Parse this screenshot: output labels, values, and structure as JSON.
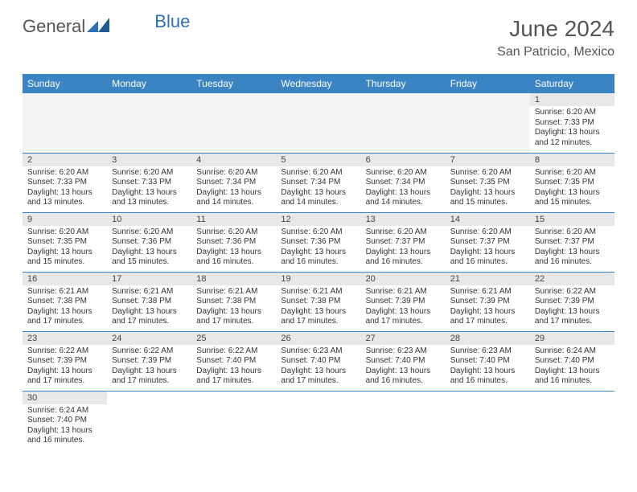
{
  "brand": {
    "word1": "General",
    "word2": "Blue"
  },
  "title": "June 2024",
  "location": "San Patricio, Mexico",
  "colors": {
    "header_bg": "#3b84c4",
    "header_text": "#ffffff",
    "daynum_bg": "#e8e8e8",
    "cell_border": "#3b84c4",
    "text": "#333333",
    "title_text": "#555555",
    "logo_blue": "#2c6fb5"
  },
  "day_headers": [
    "Sunday",
    "Monday",
    "Tuesday",
    "Wednesday",
    "Thursday",
    "Friday",
    "Saturday"
  ],
  "weeks": [
    [
      {
        "n": "",
        "lines": []
      },
      {
        "n": "",
        "lines": []
      },
      {
        "n": "",
        "lines": []
      },
      {
        "n": "",
        "lines": []
      },
      {
        "n": "",
        "lines": []
      },
      {
        "n": "",
        "lines": []
      },
      {
        "n": "1",
        "lines": [
          "Sunrise: 6:20 AM",
          "Sunset: 7:33 PM",
          "Daylight: 13 hours",
          "and 12 minutes."
        ]
      }
    ],
    [
      {
        "n": "2",
        "lines": [
          "Sunrise: 6:20 AM",
          "Sunset: 7:33 PM",
          "Daylight: 13 hours",
          "and 13 minutes."
        ]
      },
      {
        "n": "3",
        "lines": [
          "Sunrise: 6:20 AM",
          "Sunset: 7:33 PM",
          "Daylight: 13 hours",
          "and 13 minutes."
        ]
      },
      {
        "n": "4",
        "lines": [
          "Sunrise: 6:20 AM",
          "Sunset: 7:34 PM",
          "Daylight: 13 hours",
          "and 14 minutes."
        ]
      },
      {
        "n": "5",
        "lines": [
          "Sunrise: 6:20 AM",
          "Sunset: 7:34 PM",
          "Daylight: 13 hours",
          "and 14 minutes."
        ]
      },
      {
        "n": "6",
        "lines": [
          "Sunrise: 6:20 AM",
          "Sunset: 7:34 PM",
          "Daylight: 13 hours",
          "and 14 minutes."
        ]
      },
      {
        "n": "7",
        "lines": [
          "Sunrise: 6:20 AM",
          "Sunset: 7:35 PM",
          "Daylight: 13 hours",
          "and 15 minutes."
        ]
      },
      {
        "n": "8",
        "lines": [
          "Sunrise: 6:20 AM",
          "Sunset: 7:35 PM",
          "Daylight: 13 hours",
          "and 15 minutes."
        ]
      }
    ],
    [
      {
        "n": "9",
        "lines": [
          "Sunrise: 6:20 AM",
          "Sunset: 7:35 PM",
          "Daylight: 13 hours",
          "and 15 minutes."
        ]
      },
      {
        "n": "10",
        "lines": [
          "Sunrise: 6:20 AM",
          "Sunset: 7:36 PM",
          "Daylight: 13 hours",
          "and 15 minutes."
        ]
      },
      {
        "n": "11",
        "lines": [
          "Sunrise: 6:20 AM",
          "Sunset: 7:36 PM",
          "Daylight: 13 hours",
          "and 16 minutes."
        ]
      },
      {
        "n": "12",
        "lines": [
          "Sunrise: 6:20 AM",
          "Sunset: 7:36 PM",
          "Daylight: 13 hours",
          "and 16 minutes."
        ]
      },
      {
        "n": "13",
        "lines": [
          "Sunrise: 6:20 AM",
          "Sunset: 7:37 PM",
          "Daylight: 13 hours",
          "and 16 minutes."
        ]
      },
      {
        "n": "14",
        "lines": [
          "Sunrise: 6:20 AM",
          "Sunset: 7:37 PM",
          "Daylight: 13 hours",
          "and 16 minutes."
        ]
      },
      {
        "n": "15",
        "lines": [
          "Sunrise: 6:20 AM",
          "Sunset: 7:37 PM",
          "Daylight: 13 hours",
          "and 16 minutes."
        ]
      }
    ],
    [
      {
        "n": "16",
        "lines": [
          "Sunrise: 6:21 AM",
          "Sunset: 7:38 PM",
          "Daylight: 13 hours",
          "and 17 minutes."
        ]
      },
      {
        "n": "17",
        "lines": [
          "Sunrise: 6:21 AM",
          "Sunset: 7:38 PM",
          "Daylight: 13 hours",
          "and 17 minutes."
        ]
      },
      {
        "n": "18",
        "lines": [
          "Sunrise: 6:21 AM",
          "Sunset: 7:38 PM",
          "Daylight: 13 hours",
          "and 17 minutes."
        ]
      },
      {
        "n": "19",
        "lines": [
          "Sunrise: 6:21 AM",
          "Sunset: 7:38 PM",
          "Daylight: 13 hours",
          "and 17 minutes."
        ]
      },
      {
        "n": "20",
        "lines": [
          "Sunrise: 6:21 AM",
          "Sunset: 7:39 PM",
          "Daylight: 13 hours",
          "and 17 minutes."
        ]
      },
      {
        "n": "21",
        "lines": [
          "Sunrise: 6:21 AM",
          "Sunset: 7:39 PM",
          "Daylight: 13 hours",
          "and 17 minutes."
        ]
      },
      {
        "n": "22",
        "lines": [
          "Sunrise: 6:22 AM",
          "Sunset: 7:39 PM",
          "Daylight: 13 hours",
          "and 17 minutes."
        ]
      }
    ],
    [
      {
        "n": "23",
        "lines": [
          "Sunrise: 6:22 AM",
          "Sunset: 7:39 PM",
          "Daylight: 13 hours",
          "and 17 minutes."
        ]
      },
      {
        "n": "24",
        "lines": [
          "Sunrise: 6:22 AM",
          "Sunset: 7:39 PM",
          "Daylight: 13 hours",
          "and 17 minutes."
        ]
      },
      {
        "n": "25",
        "lines": [
          "Sunrise: 6:22 AM",
          "Sunset: 7:40 PM",
          "Daylight: 13 hours",
          "and 17 minutes."
        ]
      },
      {
        "n": "26",
        "lines": [
          "Sunrise: 6:23 AM",
          "Sunset: 7:40 PM",
          "Daylight: 13 hours",
          "and 17 minutes."
        ]
      },
      {
        "n": "27",
        "lines": [
          "Sunrise: 6:23 AM",
          "Sunset: 7:40 PM",
          "Daylight: 13 hours",
          "and 16 minutes."
        ]
      },
      {
        "n": "28",
        "lines": [
          "Sunrise: 6:23 AM",
          "Sunset: 7:40 PM",
          "Daylight: 13 hours",
          "and 16 minutes."
        ]
      },
      {
        "n": "29",
        "lines": [
          "Sunrise: 6:24 AM",
          "Sunset: 7:40 PM",
          "Daylight: 13 hours",
          "and 16 minutes."
        ]
      }
    ],
    [
      {
        "n": "30",
        "lines": [
          "Sunrise: 6:24 AM",
          "Sunset: 7:40 PM",
          "Daylight: 13 hours",
          "and 16 minutes."
        ]
      },
      {
        "n": "",
        "lines": []
      },
      {
        "n": "",
        "lines": []
      },
      {
        "n": "",
        "lines": []
      },
      {
        "n": "",
        "lines": []
      },
      {
        "n": "",
        "lines": []
      },
      {
        "n": "",
        "lines": []
      }
    ]
  ]
}
